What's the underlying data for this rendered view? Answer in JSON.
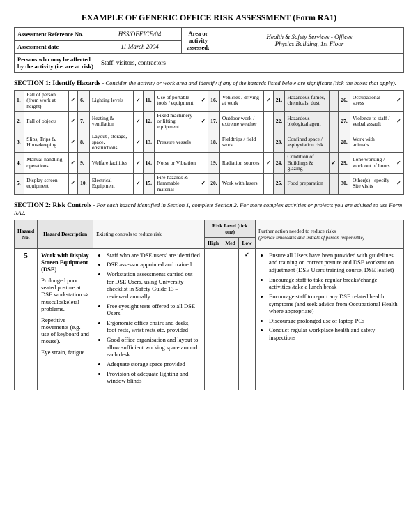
{
  "title": "EXAMPLE OF GENERIC OFFICE RISK ASSESSMENT (Form RA1)",
  "header": {
    "reference_label": "Assessment Reference No.",
    "reference_value": "HSS/OFFICE/04",
    "area_label": "Area or activity assessed:",
    "area_value1": "Health & Safety Services - Offices",
    "area_value2": "Physics Building, 1st Floor",
    "date_label": "Assessment date",
    "date_value": "11 March 2004",
    "persons_label": "Persons who may be affected by the activity (i.e. are at risk)",
    "persons_value": "Staff, visitors, contractors"
  },
  "s1": {
    "heading": "SECTION 1:  Identify Hazards",
    "sub": " - Consider the activity or work area and identify if any of the hazards listed below are significant (tick the boxes that apply).",
    "rows": [
      [
        {
          "n": "1.",
          "t": "Fall of person (from work at height)",
          "c": true
        },
        {
          "n": "6.",
          "t": "Lighting levels",
          "c": true
        },
        {
          "n": "11.",
          "t": "Use of portable tools / equipment",
          "c": true
        },
        {
          "n": "16.",
          "t": "Vehicles / driving at work",
          "c": true
        },
        {
          "n": "21.",
          "t": "Hazardous fumes, chemicals, dust",
          "c": false
        },
        {
          "n": "26.",
          "t": "Occupational stress",
          "c": true
        }
      ],
      [
        {
          "n": "2.",
          "t": "Fall of objects",
          "c": true
        },
        {
          "n": "7.",
          "t": "Heating & ventilation",
          "c": true
        },
        {
          "n": "12.",
          "t": "Fixed machinery or lifting equipment",
          "c": true
        },
        {
          "n": "17.",
          "t": "Outdoor work / extreme weather",
          "c": false
        },
        {
          "n": "22.",
          "t": "Hazardous biological agent",
          "c": false
        },
        {
          "n": "27.",
          "t": "Violence to staff / verbal assault",
          "c": true
        }
      ],
      [
        {
          "n": "3.",
          "t": "Slips, Trips & Housekeeping",
          "c": true
        },
        {
          "n": "8.",
          "t": "Layout , storage, space, obstructions",
          "c": true
        },
        {
          "n": "13.",
          "t": "Pressure vessels",
          "c": false
        },
        {
          "n": "18.",
          "t": "Fieldtrips / field work",
          "c": false
        },
        {
          "n": "23.",
          "t": "Confined space / asphyxiation risk",
          "c": false
        },
        {
          "n": "28.",
          "t": "Work with animals",
          "c": false
        }
      ],
      [
        {
          "n": "4.",
          "t": "Manual handling operations",
          "c": true
        },
        {
          "n": "9.",
          "t": "Welfare facilities",
          "c": true
        },
        {
          "n": "14.",
          "t": "Noise or Vibration",
          "c": false
        },
        {
          "n": "19.",
          "t": "Radiation sources",
          "c": true
        },
        {
          "n": "24.",
          "t": "Condition of Buildings & glazing",
          "c": true
        },
        {
          "n": "29.",
          "t": "Lone working / work out of hours",
          "c": true
        }
      ],
      [
        {
          "n": "5.",
          "t": "Display screen equipment",
          "c": true
        },
        {
          "n": "10.",
          "t": "Electrical Equipment",
          "c": true
        },
        {
          "n": "15.",
          "t": "Fire hazards & flammable material",
          "c": true
        },
        {
          "n": "20.",
          "t": "Work with lasers",
          "c": false
        },
        {
          "n": "25.",
          "t": "Food preparation",
          "c": false
        },
        {
          "n": "30.",
          "t": "Other(s) - specify Site visits",
          "c": true
        }
      ]
    ]
  },
  "s2": {
    "heading": "SECTION 2: Risk Controls",
    "sub": " - For each hazard identified in Section 1, complete Section 2. For more complex activities or projects you are advised to use Form RA2.",
    "cols": {
      "hazard_no": "Hazard No.",
      "hazard_desc": "Hazard Description",
      "existing": "Existing controls to reduce risk",
      "risk_level": "Risk Level (tick one)",
      "high": "High",
      "med": "Med",
      "low": "Low",
      "further": "Further action needed to reduce risks",
      "further_sub": "(provide timescales and initials of person responsible)"
    },
    "row": {
      "no": "5",
      "desc_title": "Work with Display Screen Equipment (DSE)",
      "desc_lines": [
        "Prolonged poor seated posture at DSE workstation ⇨ musculoskeletal problems.",
        "Repetitive movements (e.g. use of keyboard and mouse).",
        "Eye strain, fatigue"
      ],
      "existing": [
        "Staff who are 'DSE users' are identified",
        "DSE assessor appointed and trained",
        "Workstation assessments carried out for DSE Users, using University checklist in Safety Guide 13 – reviewed annually",
        "Free eyesight tests offered to all DSE Users",
        "Ergonomic office chairs and desks, foot rests, wrist rests etc. provided",
        "Good office organisation and layout to allow sufficient working space around each desk",
        "Adequate storage space provided",
        "Provision of adequate lighting and window blinds"
      ],
      "risk": {
        "high": "",
        "med": "",
        "low": "✓"
      },
      "further": [
        "Ensure all Users have been provided with guidelines and training on correct posture and DSE workstation adjustment (DSE Users training course, DSE leaflet)",
        "Encourage staff to take regular breaks/change activities /take a lunch break",
        "Encourage staff to report any DSE related health symptoms (and seek advice from Occupational Health where appropriate)",
        "Discourage prolonged use of laptop PCs",
        "Conduct regular workplace health and safety inspections"
      ]
    }
  }
}
